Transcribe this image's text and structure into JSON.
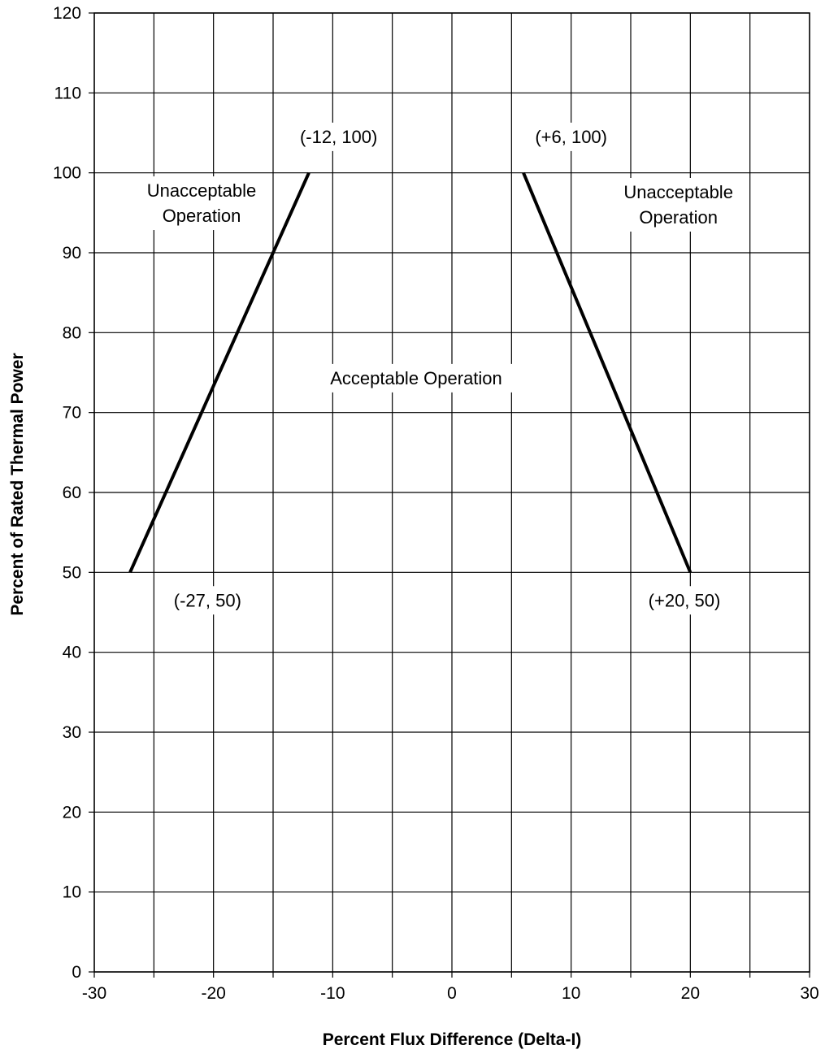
{
  "chart_data": {
    "type": "line",
    "title": "",
    "xlabel": "Percent Flux Difference (Delta-I)",
    "ylabel": "Percent of Rated Thermal Power",
    "xlim": [
      -30,
      30
    ],
    "ylim": [
      0,
      120
    ],
    "x_ticks": [
      -30,
      -25,
      -20,
      -15,
      -10,
      -5,
      0,
      5,
      10,
      15,
      20,
      25,
      30
    ],
    "x_tick_labels": [
      "-30",
      "-20",
      "-10",
      "0",
      "10",
      "20",
      "30"
    ],
    "x_tick_label_values": [
      -30,
      -20,
      -10,
      0,
      10,
      20,
      30
    ],
    "y_ticks": [
      0,
      10,
      20,
      30,
      40,
      50,
      60,
      70,
      80,
      90,
      100,
      110,
      120
    ],
    "y_tick_labels": [
      "0",
      "10",
      "20",
      "30",
      "40",
      "50",
      "60",
      "70",
      "80",
      "90",
      "100",
      "110",
      "120"
    ],
    "grid": true,
    "legend": "none",
    "series": [
      {
        "points": [
          [
            -27,
            50
          ],
          [
            -12,
            100
          ]
        ]
      },
      {
        "points": [
          [
            6,
            100
          ],
          [
            20,
            50
          ]
        ]
      }
    ],
    "annotations": [
      {
        "id": "pt-left-top",
        "lines": [
          "(-12, 100)"
        ],
        "x": -9.5,
        "y": 104.5
      },
      {
        "id": "pt-right-top",
        "lines": [
          "(+6, 100)"
        ],
        "x": 10,
        "y": 104.5
      },
      {
        "id": "pt-left-bottom",
        "lines": [
          "(-27, 50)"
        ],
        "x": -20.5,
        "y": 46.5
      },
      {
        "id": "pt-right-bottom",
        "lines": [
          "(+20, 50)"
        ],
        "x": 19.5,
        "y": 46.5
      },
      {
        "id": "unacceptable-left",
        "lines": [
          "Unacceptable",
          "Operation"
        ],
        "x": -21,
        "y": 96.2
      },
      {
        "id": "unacceptable-right",
        "lines": [
          "Unacceptable",
          "Operation"
        ],
        "x": 19,
        "y": 96
      },
      {
        "id": "acceptable",
        "lines": [
          "Acceptable Operation"
        ],
        "x": -3,
        "y": 74.3
      }
    ]
  }
}
